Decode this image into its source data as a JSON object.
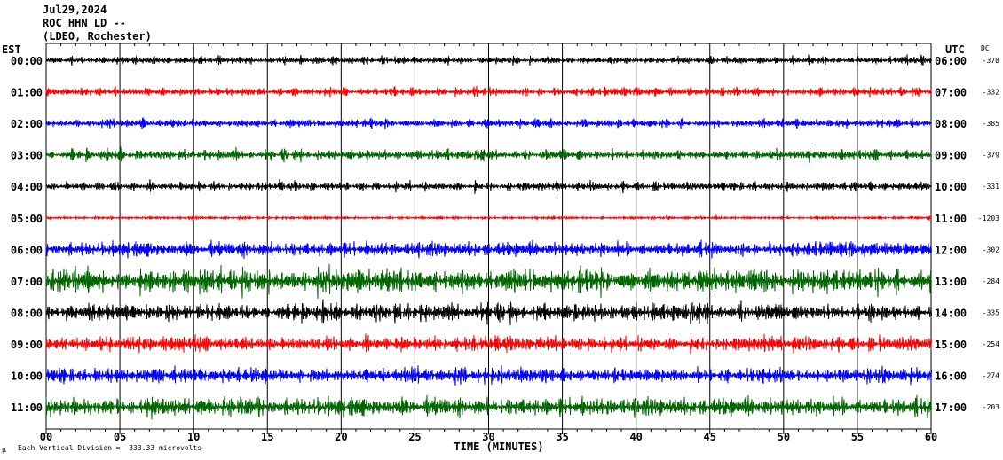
{
  "header": {
    "date": "Jul29,2024",
    "station": "ROC HHN LD --",
    "network": "(LDEO, Rochester)"
  },
  "left_zone": "EST",
  "right_zone": "UTC",
  "dc_label": "DC",
  "footer_note": "Each Vertical Division =  333.33 microvolts",
  "footer_mark": "μ",
  "colors": {
    "black": "#000000",
    "red": "#ff0000",
    "blue": "#0000ff",
    "green": "#006600",
    "grid": "#000000"
  },
  "chart_data": {
    "type": "line",
    "title": "Jul29,2024",
    "xlabel": "TIME (MINUTES)",
    "ylabel": "",
    "xlim": [
      0,
      60
    ],
    "x_ticks": [
      "00",
      "05",
      "10",
      "15",
      "20",
      "25",
      "30",
      "35",
      "40",
      "45",
      "50",
      "55",
      "60"
    ],
    "rows": [
      {
        "est": "00:00",
        "utc": "06:00",
        "dc": "-378",
        "color": "black",
        "amplitude": 0.25
      },
      {
        "est": "01:00",
        "utc": "07:00",
        "dc": "-332",
        "color": "red",
        "amplitude": 0.3
      },
      {
        "est": "02:00",
        "utc": "08:00",
        "dc": "-385",
        "color": "blue",
        "amplitude": 0.3
      },
      {
        "est": "03:00",
        "utc": "09:00",
        "dc": "-379",
        "color": "green",
        "amplitude": 0.35
      },
      {
        "est": "04:00",
        "utc": "10:00",
        "dc": "-331",
        "color": "black",
        "amplitude": 0.3
      },
      {
        "est": "05:00",
        "utc": "11:00",
        "dc": "-1203",
        "color": "red",
        "amplitude": 0.1
      },
      {
        "est": "06:00",
        "utc": "12:00",
        "dc": "-302",
        "color": "blue",
        "amplitude": 0.6
      },
      {
        "est": "07:00",
        "utc": "13:00",
        "dc": "-284",
        "color": "green",
        "amplitude": 1.0
      },
      {
        "est": "08:00",
        "utc": "14:00",
        "dc": "-335",
        "color": "black",
        "amplitude": 0.7
      },
      {
        "est": "09:00",
        "utc": "15:00",
        "dc": "-254",
        "color": "red",
        "amplitude": 0.6
      },
      {
        "est": "10:00",
        "utc": "16:00",
        "dc": "-274",
        "color": "blue",
        "amplitude": 0.6
      },
      {
        "est": "11:00",
        "utc": "17:00",
        "dc": "-203",
        "color": "green",
        "amplitude": 0.75
      }
    ]
  }
}
